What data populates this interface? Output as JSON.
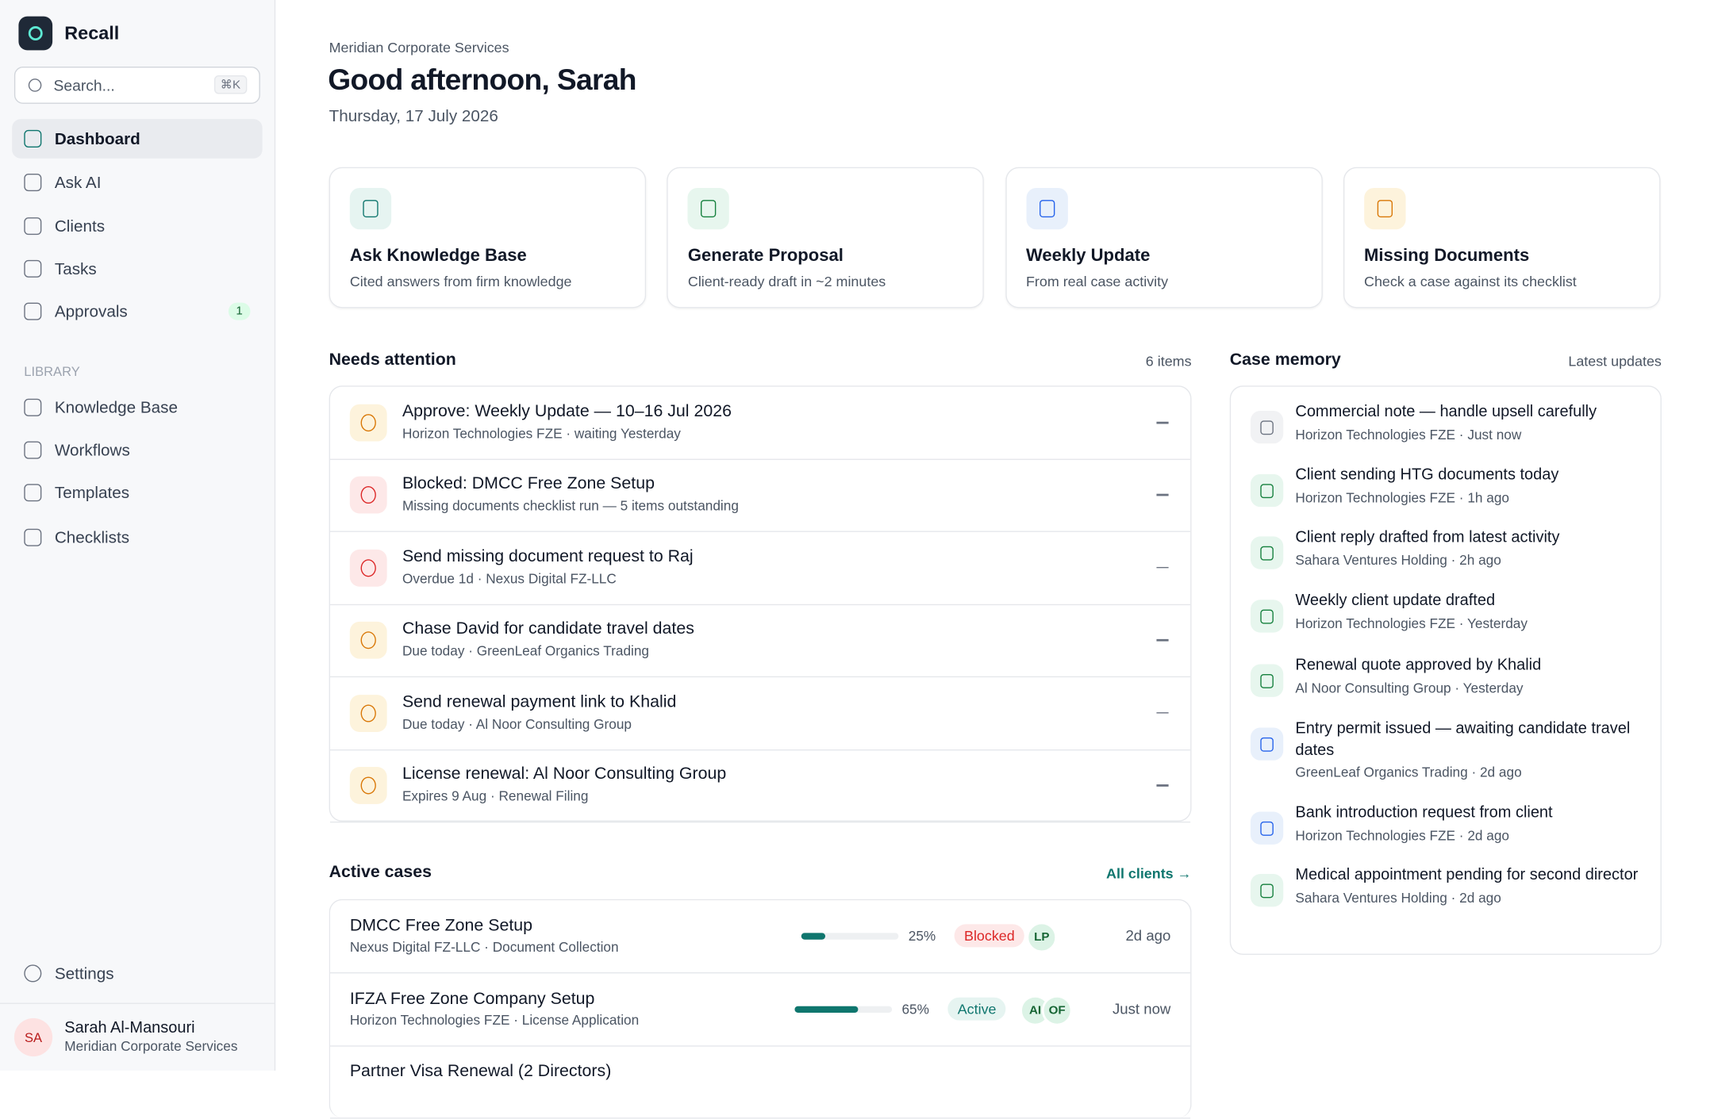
{
  "app": {
    "name": "Recall",
    "search": "Search...",
    "shortcut": "⌘K"
  },
  "nav": [
    {
      "label": "Dashboard",
      "active": true
    },
    {
      "label": "Ask AI"
    },
    {
      "label": "Clients"
    },
    {
      "label": "Tasks"
    },
    {
      "label": "Approvals",
      "badge": "1"
    }
  ],
  "library": {
    "title": "LIBRARY",
    "items": [
      "Knowledge Base",
      "Workflows",
      "Templates",
      "Checklists"
    ]
  },
  "settings": "Settings",
  "user": {
    "initials": "SA",
    "name": "Sarah Al-Mansouri",
    "org": "Meridian Corporate Services"
  },
  "header": {
    "org": "Meridian Corporate Services",
    "greeting": "Good afternoon, Sarah",
    "date": "Thursday, 17 July 2026"
  },
  "quick_actions": [
    {
      "title": "Ask Knowledge Base",
      "subtitle": "Cited answers from firm knowledge",
      "tone": "teal"
    },
    {
      "title": "Generate Proposal",
      "subtitle": "Client-ready draft in ~2 minutes",
      "tone": "green"
    },
    {
      "title": "Weekly Update",
      "subtitle": "From real case activity",
      "tone": "blue"
    },
    {
      "title": "Missing Documents",
      "subtitle": "Check a case against its checklist",
      "tone": "amber"
    }
  ],
  "needs_attention": {
    "title": "Needs attention",
    "count": "6 items",
    "items": [
      {
        "title": "Approve: Weekly Update — 10–16 Jul 2026",
        "meta": "Horizon Technologies FZE · waiting Yesterday",
        "tone": "amber"
      },
      {
        "title": "Blocked: DMCC Free Zone Setup",
        "meta": "Missing documents checklist run — 5 items outstanding",
        "tone": "red"
      },
      {
        "title": "Send missing document request to Raj",
        "meta": "Overdue 1d · Nexus Digital FZ-LLC",
        "tone": "red"
      },
      {
        "title": "Chase David for candidate travel dates",
        "meta": "Due today · GreenLeaf Organics Trading",
        "tone": "amber"
      },
      {
        "title": "Send renewal payment link to Khalid",
        "meta": "Due today · Al Noor Consulting Group",
        "tone": "amber"
      },
      {
        "title": "License renewal: Al Noor Consulting Group",
        "meta": "Expires 9 Aug · Renewal Filing",
        "tone": "amber"
      }
    ]
  },
  "case_memory": {
    "title": "Case memory",
    "subtitle": "Latest updates",
    "items": [
      {
        "title": "Commercial note — handle upsell carefully",
        "meta": "Horizon Technologies FZE · Just now",
        "tone": "gray"
      },
      {
        "title": "Client sending HTG documents today",
        "meta": "Horizon Technologies FZE · 1h ago",
        "tone": "green"
      },
      {
        "title": "Client reply drafted from latest activity",
        "meta": "Sahara Ventures Holding · 2h ago",
        "tone": "green"
      },
      {
        "title": "Weekly client update drafted",
        "meta": "Horizon Technologies FZE · Yesterday",
        "tone": "green"
      },
      {
        "title": "Renewal quote approved by Khalid",
        "meta": "Al Noor Consulting Group · Yesterday",
        "tone": "green"
      },
      {
        "title": "Entry permit issued — awaiting candidate travel dates",
        "meta": "GreenLeaf Organics Trading · 2d ago",
        "tone": "blue"
      },
      {
        "title": "Bank introduction request from client",
        "meta": "Horizon Technologies FZE · 2d ago",
        "tone": "blue"
      },
      {
        "title": "Medical appointment pending for second director",
        "meta": "Sahara Ventures Holding · 2d ago",
        "tone": "green"
      }
    ]
  },
  "active_cases": {
    "title": "Active cases",
    "link": "All clients →",
    "items": [
      {
        "title": "DMCC Free Zone Setup",
        "meta": "Nexus Digital FZ-LLC · Document Collection",
        "progress": 25,
        "progress_label": "25%",
        "status": "Blocked",
        "status_tone": "red",
        "avatars": [
          "LP"
        ],
        "updated": "2d ago"
      },
      {
        "title": "IFZA Free Zone Company Setup",
        "meta": "Horizon Technologies FZE · License Application",
        "progress": 65,
        "progress_label": "65%",
        "status": "Active",
        "status_tone": "teal",
        "avatars": [
          "AI",
          "OF"
        ],
        "updated": "Just now"
      },
      {
        "title": "Partner Visa Renewal (2 Directors)"
      }
    ]
  }
}
